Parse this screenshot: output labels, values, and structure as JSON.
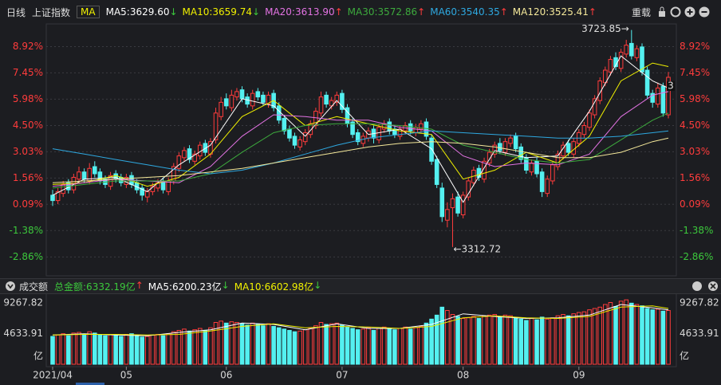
{
  "header": {
    "period": "日线",
    "symbol": "上证指数",
    "ma_label": "MA",
    "reload": "重载"
  },
  "chart_data": [
    {
      "type": "candlestick",
      "open": [
        0.6,
        0.3,
        0.7,
        1.3,
        0.9,
        1.5,
        1.9,
        1.4,
        2.2,
        1.9,
        1.5,
        1.1,
        1.8,
        1.6,
        1.2,
        1.7,
        1.3,
        1.0,
        0.5,
        0.8,
        1.0,
        1.4,
        0.8,
        1.4,
        2.1,
        2.7,
        3.2,
        2.5,
        2.8,
        3.5,
        2.9,
        3.7,
        5.0,
        6.0,
        5.5,
        6.1,
        6.5,
        6.1,
        5.6,
        6.4,
        6.2,
        5.7,
        6.3,
        5.6,
        4.9,
        4.3,
        3.9,
        3.3,
        3.6,
        4.0,
        4.5,
        5.2,
        6.2,
        5.6,
        5.8,
        6.3,
        5.5,
        4.7,
        4.1,
        3.5,
        3.8,
        4.3,
        3.7,
        4.3,
        4.7,
        4.3,
        3.9,
        4.2,
        4.6,
        4.1,
        4.3,
        4.7,
        3.8,
        2.6,
        1.0,
        -0.8,
        -0.1,
        0.5,
        -0.5,
        0.5,
        1.3,
        2.1,
        1.5,
        2.4,
        2.9,
        3.5,
        3.0,
        3.5,
        3.9,
        3.3,
        2.7,
        1.9,
        2.5,
        1.9,
        0.7,
        1.4,
        2.2,
        2.8,
        3.5,
        2.9,
        3.5,
        4.0,
        4.4,
        5.1,
        5.9,
        6.9,
        7.5,
        8.3,
        7.7,
        8.5,
        9.1,
        8.3,
        8.9,
        7.6,
        6.3,
        5.7,
        6.7,
        5.1
      ],
      "close": [
        0.3,
        0.8,
        1.2,
        0.9,
        1.6,
        1.9,
        1.5,
        2.1,
        1.8,
        1.4,
        1.2,
        1.7,
        1.5,
        1.3,
        1.6,
        1.2,
        0.9,
        0.6,
        0.8,
        1.1,
        1.3,
        0.9,
        1.4,
        2.2,
        2.8,
        3.1,
        2.6,
        2.9,
        3.4,
        3.0,
        3.6,
        5.2,
        5.8,
        5.6,
        6.2,
        6.4,
        6.0,
        5.7,
        6.3,
        6.1,
        5.8,
        6.2,
        5.5,
        4.8,
        4.2,
        3.8,
        3.4,
        3.7,
        4.1,
        4.6,
        5.3,
        6.1,
        5.7,
        5.9,
        6.2,
        5.4,
        4.6,
        4.0,
        3.6,
        3.9,
        4.2,
        3.8,
        4.4,
        4.6,
        4.2,
        4.0,
        4.3,
        4.5,
        4.2,
        4.4,
        4.6,
        3.9,
        2.5,
        1.2,
        -0.6,
        -0.2,
        0.4,
        -0.4,
        0.6,
        1.4,
        2.0,
        1.6,
        2.5,
        3.0,
        3.4,
        3.1,
        3.6,
        3.8,
        3.2,
        2.6,
        2.0,
        2.4,
        1.8,
        0.8,
        1.5,
        2.3,
        2.9,
        3.4,
        3.0,
        3.6,
        4.1,
        4.5,
        5.2,
        6.0,
        7.0,
        7.6,
        8.2,
        7.8,
        8.6,
        9.0,
        8.4,
        8.8,
        7.5,
        6.2,
        5.8,
        6.6,
        5.2,
        7.2
      ],
      "high": [
        0.9,
        1.0,
        1.4,
        1.5,
        1.8,
        2.2,
        2.1,
        2.4,
        2.5,
        2.1,
        1.7,
        1.9,
        2.0,
        1.8,
        1.8,
        1.9,
        1.5,
        1.2,
        1.0,
        1.3,
        1.5,
        1.6,
        1.6,
        2.4,
        3.0,
        3.3,
        3.4,
        3.1,
        3.6,
        3.7,
        3.8,
        5.5,
        6.1,
        6.3,
        6.5,
        6.6,
        6.7,
        6.3,
        6.5,
        6.6,
        6.4,
        6.4,
        6.5,
        5.8,
        5.1,
        4.5,
        4.1,
        3.9,
        4.3,
        4.8,
        5.5,
        6.4,
        6.4,
        6.1,
        6.4,
        6.5,
        5.7,
        4.9,
        4.3,
        4.1,
        4.4,
        4.5,
        4.6,
        4.8,
        4.9,
        4.5,
        4.5,
        4.7,
        4.8,
        4.6,
        4.8,
        4.9,
        4.0,
        2.8,
        1.3,
        0.2,
        0.7,
        0.8,
        0.8,
        1.6,
        2.2,
        2.3,
        2.7,
        3.2,
        3.6,
        3.8,
        3.8,
        4.0,
        4.1,
        3.5,
        2.9,
        2.6,
        2.7,
        2.1,
        1.7,
        2.5,
        3.1,
        3.6,
        3.7,
        3.8,
        4.3,
        4.7,
        5.4,
        6.2,
        7.2,
        7.8,
        8.4,
        8.6,
        8.8,
        9.3,
        9.85,
        9.0,
        9.1,
        7.8,
        6.5,
        6.9,
        6.9,
        7.5
      ],
      "low": [
        0.0,
        0.1,
        0.5,
        0.7,
        0.7,
        1.3,
        1.3,
        1.2,
        1.6,
        1.2,
        1.0,
        0.9,
        1.3,
        1.1,
        1.0,
        1.0,
        0.7,
        0.3,
        0.2,
        0.6,
        0.8,
        0.7,
        0.6,
        1.2,
        1.9,
        2.5,
        2.4,
        2.3,
        2.6,
        2.8,
        2.7,
        3.5,
        4.8,
        5.4,
        5.3,
        5.9,
        5.8,
        5.5,
        5.4,
        5.9,
        5.6,
        5.5,
        5.3,
        4.6,
        4.0,
        3.6,
        3.2,
        3.1,
        3.4,
        3.8,
        4.3,
        5.0,
        5.5,
        5.4,
        5.6,
        5.2,
        4.4,
        3.8,
        3.4,
        3.3,
        3.6,
        3.5,
        3.5,
        4.1,
        4.0,
        3.8,
        3.7,
        4.0,
        4.0,
        3.9,
        4.1,
        3.7,
        2.3,
        1.0,
        -0.9,
        -1.2,
        -2.3,
        -0.6,
        -0.7,
        0.3,
        1.1,
        1.4,
        1.3,
        2.2,
        2.7,
        2.9,
        2.8,
        3.3,
        3.0,
        2.4,
        1.8,
        1.7,
        1.6,
        0.5,
        0.5,
        1.2,
        2.0,
        2.6,
        2.8,
        2.7,
        3.3,
        3.8,
        4.2,
        4.9,
        5.7,
        6.7,
        7.3,
        7.6,
        7.5,
        8.3,
        8.2,
        8.1,
        7.3,
        6.0,
        5.5,
        5.5,
        5.0,
        4.9
      ],
      "up_color": "#ff3c3c",
      "down_color": "#54f0f0",
      "series": [
        {
          "name": "MA5:3629.60",
          "trend": "↓",
          "color": "#ffffff",
          "x": [
            0,
            6,
            12,
            18,
            24,
            30,
            36,
            42,
            48,
            54,
            60,
            66,
            72,
            78,
            84,
            90,
            96,
            102,
            108,
            114,
            117
          ],
          "values": [
            0.6,
            1.5,
            1.6,
            0.8,
            2.3,
            3.4,
            6.0,
            5.6,
            3.9,
            5.9,
            4.0,
            4.3,
            3.2,
            0.2,
            3.1,
            2.7,
            2.8,
            5.3,
            8.4,
            7.0,
            6.6
          ]
        },
        {
          "name": "MA10:3659.74",
          "trend": "↓",
          "color": "#f0f000",
          "x": [
            0,
            6,
            12,
            18,
            24,
            30,
            36,
            42,
            48,
            54,
            60,
            66,
            72,
            78,
            84,
            90,
            96,
            102,
            108,
            114,
            117
          ],
          "values": [
            1.2,
            1.3,
            1.7,
            1.1,
            1.6,
            2.9,
            5.0,
            5.9,
            4.5,
            5.0,
            4.6,
            4.2,
            4.0,
            1.5,
            2.0,
            3.0,
            2.4,
            3.9,
            7.0,
            8.0,
            7.8
          ]
        },
        {
          "name": "MA20:3613.90",
          "trend": "↑",
          "color": "#e373e3",
          "x": [
            0,
            6,
            12,
            18,
            24,
            30,
            36,
            42,
            48,
            54,
            60,
            66,
            72,
            78,
            84,
            90,
            96,
            102,
            108,
            114,
            117
          ],
          "values": [
            1.1,
            1.3,
            1.5,
            1.4,
            1.3,
            2.2,
            3.9,
            5.1,
            5.0,
            4.8,
            4.8,
            4.4,
            4.2,
            2.8,
            2.2,
            2.4,
            2.3,
            2.9,
            5.0,
            6.2,
            6.4
          ]
        },
        {
          "name": "MA30:3572.86",
          "trend": "↑",
          "color": "#3daa3d",
          "x": [
            0,
            6,
            12,
            18,
            24,
            30,
            36,
            42,
            48,
            54,
            60,
            66,
            72,
            78,
            84,
            90,
            96,
            102,
            108,
            114,
            117
          ],
          "values": [
            1.0,
            1.2,
            1.4,
            1.4,
            1.4,
            1.8,
            3.0,
            4.1,
            4.5,
            4.6,
            4.6,
            4.5,
            4.3,
            3.4,
            3.0,
            2.6,
            2.4,
            2.6,
            3.7,
            4.8,
            5.2
          ]
        },
        {
          "name": "MA60:3540.35",
          "trend": "↑",
          "color": "#2ea8e0",
          "x": [
            0,
            6,
            12,
            18,
            24,
            30,
            36,
            42,
            48,
            54,
            60,
            66,
            72,
            78,
            84,
            90,
            96,
            102,
            108,
            114,
            117
          ],
          "values": [
            3.2,
            2.9,
            2.6,
            2.3,
            2.0,
            1.8,
            2.0,
            2.4,
            2.9,
            3.4,
            3.8,
            4.0,
            4.2,
            4.1,
            4.0,
            3.9,
            3.8,
            3.8,
            3.9,
            4.1,
            4.2
          ]
        },
        {
          "name": "MA120:3525.41",
          "trend": "↑",
          "color": "#f4e89a",
          "x": [
            0,
            6,
            12,
            18,
            24,
            30,
            36,
            42,
            48,
            54,
            60,
            66,
            72,
            78,
            84,
            90,
            96,
            102,
            108,
            114,
            117
          ],
          "values": [
            1.3,
            1.4,
            1.5,
            1.6,
            1.7,
            1.9,
            2.1,
            2.4,
            2.7,
            3.0,
            3.3,
            3.5,
            3.6,
            3.5,
            3.3,
            3.0,
            2.7,
            2.7,
            3.0,
            3.6,
            3.8
          ]
        }
      ],
      "ylim": [
        -3.6,
        10.1
      ],
      "yticks": [
        {
          "value": -2.86,
          "label": "-2.86%"
        },
        {
          "value": -1.38,
          "label": "-1.38%"
        },
        {
          "value": 0.09,
          "label": "0.09%"
        },
        {
          "value": 1.56,
          "label": "1.56%"
        },
        {
          "value": 3.03,
          "label": "3.03%"
        },
        {
          "value": 4.5,
          "label": "4.50%"
        },
        {
          "value": 5.98,
          "label": "5.98%"
        },
        {
          "value": 7.45,
          "label": "7.45%"
        },
        {
          "value": 8.92,
          "label": "8.92%"
        }
      ],
      "xticks": [
        {
          "value": 0,
          "label": "2021/04"
        },
        {
          "value": 14,
          "label": "05"
        },
        {
          "value": 33,
          "label": "06"
        },
        {
          "value": 55,
          "label": "07"
        },
        {
          "value": 78,
          "label": "08"
        },
        {
          "value": 100,
          "label": "09"
        }
      ],
      "max_label": "3723.85→",
      "min_label": "←3312.72",
      "last_label": "3",
      "grid": true
    },
    {
      "type": "bar",
      "title": "成交额",
      "summary": {
        "name": "总金额:6332.19亿",
        "trend": "↑",
        "color": "#3cc83c"
      },
      "values": [
        4200,
        4400,
        4600,
        4300,
        4700,
        4800,
        4500,
        4900,
        4700,
        4400,
        4300,
        4500,
        4400,
        4200,
        4500,
        4600,
        4300,
        4100,
        4200,
        4400,
        4500,
        4300,
        4600,
        4900,
        5100,
        5300,
        5000,
        5200,
        5400,
        5100,
        5500,
        6300,
        6500,
        6200,
        6400,
        6300,
        6100,
        5900,
        6200,
        6000,
        5800,
        6100,
        5700,
        5500,
        5300,
        5100,
        4900,
        5000,
        5200,
        5400,
        5800,
        6300,
        6000,
        6100,
        6200,
        5900,
        5600,
        5400,
        5200,
        5300,
        5500,
        5100,
        5400,
        5600,
        5300,
        5200,
        5400,
        5600,
        5300,
        5500,
        5700,
        6200,
        6800,
        7400,
        8600,
        8100,
        7500,
        7200,
        6900,
        7000,
        7200,
        6900,
        7300,
        7400,
        7500,
        7100,
        7400,
        7300,
        7000,
        6800,
        6600,
        6900,
        6700,
        7100,
        6800,
        7000,
        7300,
        7500,
        7300,
        7600,
        7800,
        7900,
        8200,
        8400,
        8600,
        9000,
        9300,
        8700,
        9500,
        9700,
        9200,
        9000,
        8800,
        8400,
        8200,
        8300,
        8000,
        8100
      ],
      "series": [
        {
          "name": "MA5:6200.23亿",
          "trend": "↓",
          "color": "#ffffff",
          "x": [
            0,
            6,
            12,
            18,
            24,
            30,
            36,
            42,
            48,
            54,
            60,
            66,
            72,
            78,
            84,
            90,
            96,
            102,
            108,
            114,
            117
          ],
          "values": [
            4400,
            4600,
            4400,
            4300,
            4800,
            5200,
            6200,
            6000,
            5200,
            6100,
            5400,
            5400,
            6000,
            7600,
            7200,
            6900,
            7000,
            7400,
            9000,
            8500,
            8200
          ]
        },
        {
          "name": "MA10:6602.98亿",
          "trend": "↓",
          "color": "#f0f000",
          "x": [
            0,
            6,
            12,
            18,
            24,
            30,
            36,
            42,
            48,
            54,
            60,
            66,
            72,
            78,
            84,
            90,
            96,
            102,
            108,
            114,
            117
          ],
          "values": [
            4400,
            4500,
            4500,
            4400,
            4500,
            5000,
            5700,
            6100,
            5500,
            5700,
            5600,
            5400,
            5700,
            7000,
            7300,
            7000,
            6900,
            7200,
            8600,
            8800,
            8400
          ]
        }
      ],
      "ylim": [
        0,
        10200
      ],
      "yticks": [
        4633.91,
        9267.82
      ],
      "unit": "亿",
      "grid": false
    }
  ]
}
